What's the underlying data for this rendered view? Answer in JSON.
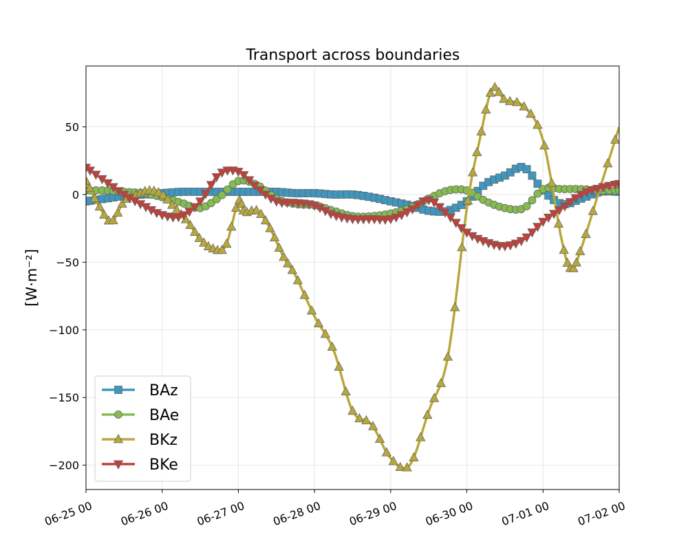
{
  "chart_data": {
    "type": "line",
    "title": "Transport across boundaries",
    "xlabel": "",
    "ylabel": "[W·m⁻²]",
    "x_unit": "day",
    "xlim": [
      "06-25 00",
      "07-02 00"
    ],
    "ylim": [
      -218,
      95
    ],
    "x_ticks": [
      "06-25 00",
      "06-26 00",
      "06-27 00",
      "06-28 00",
      "06-29 00",
      "06-30 00",
      "07-01 00",
      "07-02 00"
    ],
    "y_ticks": [
      50,
      0,
      -50,
      -100,
      -150,
      -200
    ],
    "y_tick_labels": [
      "50",
      "0",
      "−50",
      "−100",
      "−150",
      "−200"
    ],
    "grid": true,
    "legend_position": "lower-left",
    "series": [
      {
        "name": "BAz",
        "color": "#3d97bf",
        "marker": "square",
        "points": [
          [
            "06-25 00",
            -5
          ],
          [
            "06-25 06",
            -3
          ],
          [
            "06-25 12",
            -1
          ],
          [
            "06-25 18",
            0
          ],
          [
            "06-26 00",
            1
          ],
          [
            "06-26 06",
            2
          ],
          [
            "06-26 12",
            2
          ],
          [
            "06-26 18",
            2
          ],
          [
            "06-27 00",
            2
          ],
          [
            "06-27 06",
            2
          ],
          [
            "06-27 12",
            2
          ],
          [
            "06-27 18",
            1
          ],
          [
            "06-28 00",
            1
          ],
          [
            "06-28 06",
            0
          ],
          [
            "06-28 12",
            0
          ],
          [
            "06-28 18",
            -2
          ],
          [
            "06-29 00",
            -5
          ],
          [
            "06-29 06",
            -8
          ],
          [
            "06-29 12",
            -12
          ],
          [
            "06-29 18",
            -12
          ],
          [
            "06-30 00",
            -5
          ],
          [
            "06-30 06",
            8
          ],
          [
            "06-30 12",
            14
          ],
          [
            "06-30 18",
            20
          ],
          [
            "07-01 00",
            3
          ],
          [
            "07-01 06",
            -7
          ],
          [
            "07-01 12",
            -3
          ],
          [
            "07-01 18",
            2
          ],
          [
            "07-02 00",
            2
          ]
        ]
      },
      {
        "name": "BAe",
        "color": "#85bb4f",
        "marker": "circle",
        "points": [
          [
            "06-25 00",
            3
          ],
          [
            "06-25 06",
            3
          ],
          [
            "06-25 12",
            2
          ],
          [
            "06-25 18",
            1
          ],
          [
            "06-26 00",
            -2
          ],
          [
            "06-26 06",
            -6
          ],
          [
            "06-26 12",
            -10
          ],
          [
            "06-26 18",
            -2
          ],
          [
            "06-27 00",
            10
          ],
          [
            "06-27 06",
            7
          ],
          [
            "06-27 12",
            -3
          ],
          [
            "06-27 18",
            -7
          ],
          [
            "06-28 00",
            -8
          ],
          [
            "06-28 06",
            -12
          ],
          [
            "06-28 12",
            -16
          ],
          [
            "06-28 18",
            -16
          ],
          [
            "06-29 00",
            -14
          ],
          [
            "06-29 06",
            -10
          ],
          [
            "06-29 12",
            -3
          ],
          [
            "06-29 18",
            3
          ],
          [
            "06-30 00",
            3
          ],
          [
            "06-30 06",
            -5
          ],
          [
            "06-30 12",
            -10
          ],
          [
            "06-30 18",
            -10
          ],
          [
            "07-01 00",
            4
          ],
          [
            "07-01 06",
            4
          ],
          [
            "07-01 12",
            4
          ],
          [
            "07-01 18",
            3
          ],
          [
            "07-02 00",
            3
          ]
        ]
      },
      {
        "name": "BKz",
        "color": "#b8a83a",
        "marker": "triangle-up",
        "points": [
          [
            "06-25 00",
            10
          ],
          [
            "06-25 04",
            -8
          ],
          [
            "06-25 08",
            -20
          ],
          [
            "06-25 12",
            -5
          ],
          [
            "06-25 16",
            0
          ],
          [
            "06-25 20",
            3
          ],
          [
            "06-26 00",
            0
          ],
          [
            "06-26 04",
            -10
          ],
          [
            "06-26 08",
            -20
          ],
          [
            "06-26 12",
            -33
          ],
          [
            "06-26 16",
            -40
          ],
          [
            "06-26 20",
            -38
          ],
          [
            "06-27 00",
            -5
          ],
          [
            "06-27 02",
            -13
          ],
          [
            "06-27 06",
            -12
          ],
          [
            "06-27 10",
            -25
          ],
          [
            "06-27 14",
            -45
          ],
          [
            "06-27 18",
            -60
          ],
          [
            "06-28 00",
            -90
          ],
          [
            "06-28 06",
            -115
          ],
          [
            "06-28 12",
            -160
          ],
          [
            "06-28 18",
            -170
          ],
          [
            "06-29 00",
            -195
          ],
          [
            "06-29 06",
            -200
          ],
          [
            "06-29 12",
            -160
          ],
          [
            "06-29 18",
            -120
          ],
          [
            "06-30 00",
            -10
          ],
          [
            "06-30 04",
            40
          ],
          [
            "06-30 08",
            78
          ],
          [
            "06-30 12",
            70
          ],
          [
            "06-30 18",
            65
          ],
          [
            "07-01 00",
            40
          ],
          [
            "07-01 06",
            -35
          ],
          [
            "07-01 09",
            -55
          ],
          [
            "07-01 12",
            -40
          ],
          [
            "07-01 18",
            5
          ],
          [
            "07-02 00",
            50
          ]
        ]
      },
      {
        "name": "BKe",
        "color": "#c0403a",
        "marker": "triangle-down",
        "points": [
          [
            "06-25 00",
            20
          ],
          [
            "06-25 06",
            10
          ],
          [
            "06-25 12",
            0
          ],
          [
            "06-25 18",
            -8
          ],
          [
            "06-26 00",
            -15
          ],
          [
            "06-26 06",
            -16
          ],
          [
            "06-26 12",
            -5
          ],
          [
            "06-26 18",
            15
          ],
          [
            "06-27 00",
            17
          ],
          [
            "06-27 06",
            5
          ],
          [
            "06-27 12",
            -5
          ],
          [
            "06-27 18",
            -6
          ],
          [
            "06-28 00",
            -8
          ],
          [
            "06-28 06",
            -15
          ],
          [
            "06-28 12",
            -18
          ],
          [
            "06-28 18",
            -18
          ],
          [
            "06-29 00",
            -18
          ],
          [
            "06-29 06",
            -12
          ],
          [
            "06-29 12",
            -4
          ],
          [
            "06-29 18",
            -15
          ],
          [
            "06-30 00",
            -28
          ],
          [
            "06-30 06",
            -35
          ],
          [
            "06-30 12",
            -38
          ],
          [
            "06-30 18",
            -33
          ],
          [
            "07-01 00",
            -20
          ],
          [
            "07-01 06",
            -10
          ],
          [
            "07-01 12",
            0
          ],
          [
            "07-01 18",
            5
          ],
          [
            "07-02 00",
            8
          ]
        ]
      }
    ]
  }
}
